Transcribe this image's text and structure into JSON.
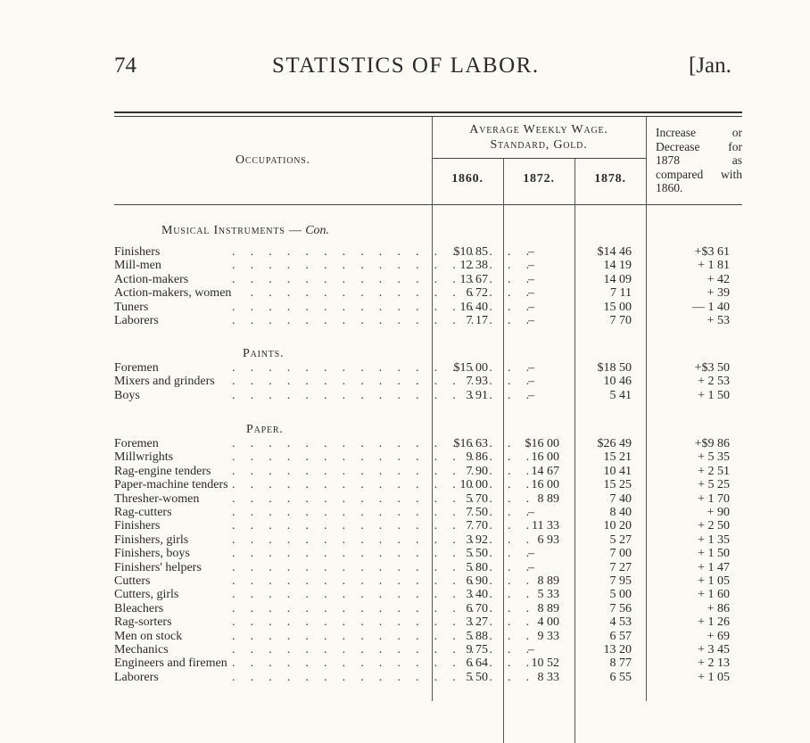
{
  "header": {
    "page_number": "74",
    "title": "STATISTICS OF LABOR.",
    "date": "[Jan."
  },
  "table": {
    "occupations_label": "Occupations.",
    "wage_label_line1": "Average Weekly Wage.",
    "wage_label_line2": "Standard, Gold.",
    "years": [
      "1860.",
      "1872.",
      "1878."
    ],
    "increase_label": "Increase or Decrease for 1878 as compared with 1860.",
    "sections": [
      {
        "title": "Musical Instruments —",
        "title_suffix": "Con.",
        "rows": [
          {
            "occ": "Finishers",
            "v1860": "$10 85",
            "v1872": "–",
            "v1878": "$14 46",
            "incr": "+$3 61"
          },
          {
            "occ": "Mill-men",
            "v1860": "12 38",
            "v1872": "–",
            "v1878": "14 19",
            "incr": "+ 1 81"
          },
          {
            "occ": "Action-makers",
            "v1860": "13 67",
            "v1872": "–",
            "v1878": "14 09",
            "incr": "+ 42"
          },
          {
            "occ": "Action-makers, women",
            "v1860": "6 72",
            "v1872": "–",
            "v1878": "7 11",
            "incr": "+ 39"
          },
          {
            "occ": "Tuners",
            "v1860": "16 40",
            "v1872": "–",
            "v1878": "15 00",
            "incr": "— 1 40"
          },
          {
            "occ": "Laborers",
            "v1860": "7 17",
            "v1872": "–",
            "v1878": "7 70",
            "incr": "+ 53"
          }
        ]
      },
      {
        "title": "Paints.",
        "title_suffix": "",
        "rows": [
          {
            "occ": "Foremen",
            "v1860": "$15 00",
            "v1872": "–",
            "v1878": "$18 50",
            "incr": "+$3 50"
          },
          {
            "occ": "Mixers and grinders",
            "v1860": "7 93",
            "v1872": "–",
            "v1878": "10 46",
            "incr": "+ 2 53"
          },
          {
            "occ": "Boys",
            "v1860": "3 91",
            "v1872": "–",
            "v1878": "5 41",
            "incr": "+ 1 50"
          }
        ]
      },
      {
        "title": "Paper.",
        "title_suffix": "",
        "rows": [
          {
            "occ": "Foremen",
            "v1860": "$16 63",
            "v1872": "$16 00",
            "v1878": "$26 49",
            "incr": "+$9 86"
          },
          {
            "occ": "Millwrights",
            "v1860": "9 86",
            "v1872": "16 00",
            "v1878": "15 21",
            "incr": "+ 5 35"
          },
          {
            "occ": "Rag-engine tenders",
            "v1860": "7 90",
            "v1872": "14 67",
            "v1878": "10 41",
            "incr": "+ 2 51"
          },
          {
            "occ": "Paper-machine tenders",
            "v1860": "10 00",
            "v1872": "16 00",
            "v1878": "15 25",
            "incr": "+ 5 25"
          },
          {
            "occ": "Thresher-women",
            "v1860": "5 70",
            "v1872": "8 89",
            "v1878": "7 40",
            "incr": "+ 1 70"
          },
          {
            "occ": "Rag-cutters",
            "v1860": "7 50",
            "v1872": "–",
            "v1878": "8 40",
            "incr": "+ 90"
          },
          {
            "occ": "Finishers",
            "v1860": "7 70",
            "v1872": "11 33",
            "v1878": "10 20",
            "incr": "+ 2 50"
          },
          {
            "occ": "Finishers, girls",
            "v1860": "3 92",
            "v1872": "6 93",
            "v1878": "5 27",
            "incr": "+ 1 35"
          },
          {
            "occ": "Finishers, boys",
            "v1860": "5 50",
            "v1872": "–",
            "v1878": "7 00",
            "incr": "+ 1 50"
          },
          {
            "occ": "Finishers' helpers",
            "v1860": "5 80",
            "v1872": "–",
            "v1878": "7 27",
            "incr": "+ 1 47"
          },
          {
            "occ": "Cutters",
            "v1860": "6 90",
            "v1872": "8 89",
            "v1878": "7 95",
            "incr": "+ 1 05"
          },
          {
            "occ": "Cutters, girls",
            "v1860": "3 40",
            "v1872": "5 33",
            "v1878": "5 00",
            "incr": "+ 1 60"
          },
          {
            "occ": "Bleachers",
            "v1860": "6 70",
            "v1872": "8 89",
            "v1878": "7 56",
            "incr": "+ 86"
          },
          {
            "occ": "Rag-sorters",
            "v1860": "3 27",
            "v1872": "4 00",
            "v1878": "4 53",
            "incr": "+ 1 26"
          },
          {
            "occ": "Men on stock",
            "v1860": "5 88",
            "v1872": "9 33",
            "v1878": "6 57",
            "incr": "+ 69"
          },
          {
            "occ": "Mechanics",
            "v1860": "9 75",
            "v1872": "–",
            "v1878": "13 20",
            "incr": "+ 3 45"
          },
          {
            "occ": "Engineers and firemen",
            "v1860": "6 64",
            "v1872": "10 52",
            "v1878": "8 77",
            "incr": "+ 2 13"
          },
          {
            "occ": "Laborers",
            "v1860": "5 50",
            "v1872": "8 33",
            "v1878": "6 55",
            "incr": "+ 1 05"
          }
        ]
      }
    ]
  }
}
